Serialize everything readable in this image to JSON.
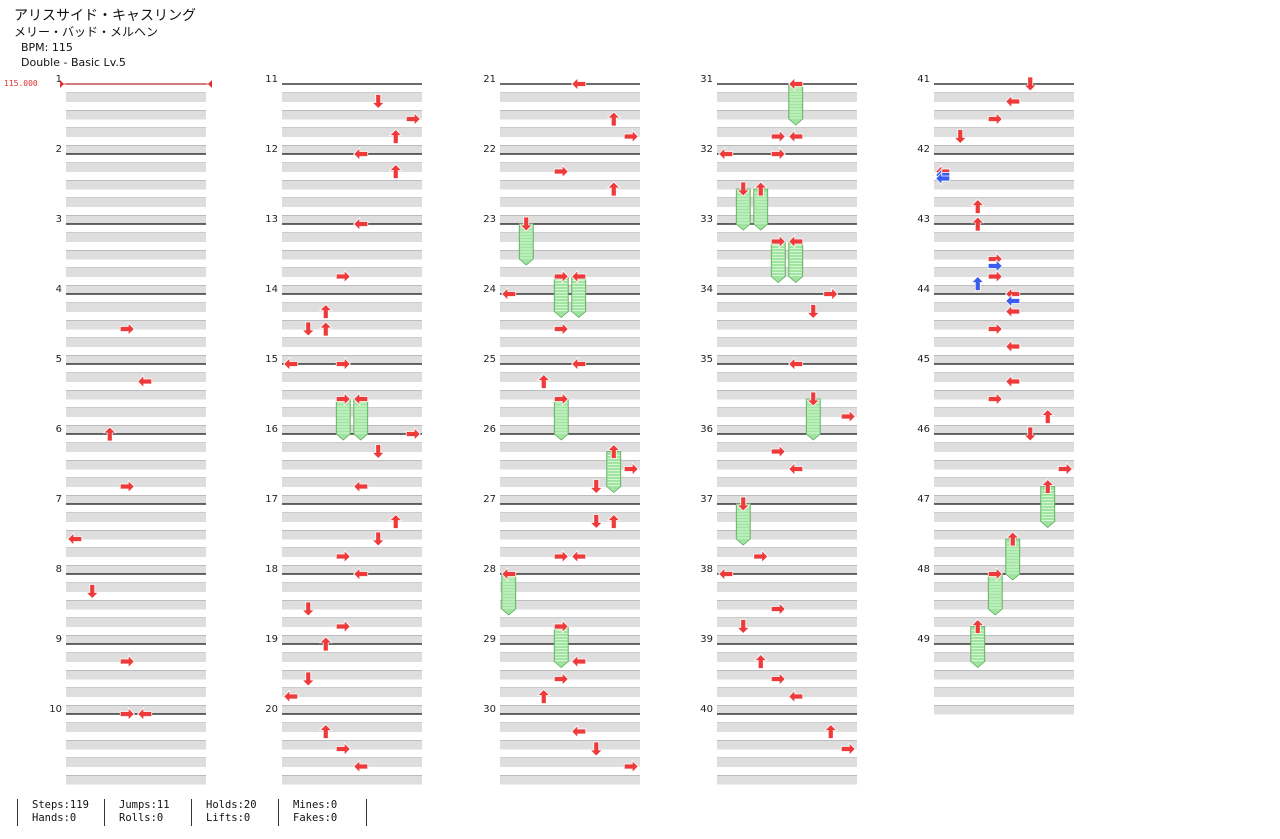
{
  "song": {
    "title": "アリスサイド・キャスリング",
    "artist": "メリー・バッド・メルヘン",
    "bpm_label": "BPM: 115",
    "mode_label": "Double - Basic  Lv.5"
  },
  "bpm_marker": {
    "value": "115.000"
  },
  "colors": {
    "blue_note": "#3a5cf0",
    "red_note": "#ee3a3a",
    "hold_body": "#9fe59f",
    "lane_shade": "#dedede"
  },
  "chart_data": {
    "type": "step-chart",
    "measure_count": 49,
    "measures_per_column": 10,
    "columns_per_measure": 8,
    "measure_labels": [
      "1",
      "2",
      "3",
      "4",
      "5",
      "6",
      "7",
      "8",
      "9",
      "10",
      "11",
      "12",
      "13",
      "14",
      "15",
      "16",
      "17",
      "18",
      "19",
      "20",
      "21",
      "22",
      "23",
      "24",
      "25",
      "26",
      "27",
      "28",
      "29",
      "30",
      "31",
      "32",
      "33",
      "34",
      "35",
      "36",
      "37",
      "38",
      "39",
      "40",
      "41",
      "42",
      "43",
      "44",
      "45",
      "46",
      "47",
      "48",
      "49"
    ],
    "notes": [
      {
        "m": 4,
        "b": 0.5,
        "c": 3,
        "d": "right"
      },
      {
        "m": 5,
        "b": 0.25,
        "c": 4,
        "d": "left"
      },
      {
        "m": 6,
        "b": 0,
        "c": 2,
        "d": "up"
      },
      {
        "m": 6,
        "b": 0.75,
        "c": 3,
        "d": "right"
      },
      {
        "m": 7,
        "b": 0.5,
        "c": 0,
        "d": "left"
      },
      {
        "m": 8,
        "b": 0.25,
        "c": 1,
        "d": "down"
      },
      {
        "m": 9,
        "b": 0.25,
        "c": 3,
        "d": "right"
      },
      {
        "m": 10,
        "b": 0,
        "c": 3,
        "d": "right"
      },
      {
        "m": 10,
        "b": 0,
        "c": 4,
        "d": "left"
      },
      {
        "m": 11,
        "b": 0.75,
        "c": 6,
        "d": "up"
      },
      {
        "m": 11,
        "b": 0.25,
        "c": 5,
        "d": "down"
      },
      {
        "m": 11,
        "b": 0.5,
        "c": 7,
        "d": "right"
      },
      {
        "m": 12,
        "b": 0,
        "c": 4,
        "d": "left"
      },
      {
        "m": 12,
        "b": 0.25,
        "c": 6,
        "d": "up"
      },
      {
        "m": 13,
        "b": 0.75,
        "c": 3,
        "d": "right"
      },
      {
        "m": 13,
        "b": 0,
        "c": 4,
        "d": "left"
      },
      {
        "m": 14,
        "b": 0.25,
        "c": 2,
        "d": "up"
      },
      {
        "m": 14,
        "b": 0.5,
        "c": 1,
        "d": "down"
      },
      {
        "m": 14,
        "b": 0.5,
        "c": 2,
        "d": "up"
      },
      {
        "m": 15,
        "b": 0,
        "c": 0,
        "d": "left"
      },
      {
        "m": 15,
        "b": 0,
        "c": 3,
        "d": "right"
      },
      {
        "m": 15,
        "b": 0.5,
        "c": 3,
        "d": "right",
        "hold": 0.5
      },
      {
        "m": 15,
        "b": 0.5,
        "c": 4,
        "d": "left",
        "hold": 0.5
      },
      {
        "m": 16,
        "b": 0.25,
        "c": 5,
        "d": "down"
      },
      {
        "m": 16,
        "b": 0.75,
        "c": 4,
        "d": "left"
      },
      {
        "m": 16,
        "b": 0,
        "c": 7,
        "d": "right"
      },
      {
        "m": 17,
        "b": 0.25,
        "c": 6,
        "d": "up"
      },
      {
        "m": 17,
        "b": 0.5,
        "c": 5,
        "d": "down"
      },
      {
        "m": 17,
        "b": 0.75,
        "c": 3,
        "d": "right"
      },
      {
        "m": 18,
        "b": 0,
        "c": 4,
        "d": "left"
      },
      {
        "m": 18,
        "b": 0.5,
        "c": 1,
        "d": "down"
      },
      {
        "m": 18,
        "b": 0.75,
        "c": 3,
        "d": "right"
      },
      {
        "m": 19,
        "b": 0,
        "c": 2,
        "d": "up"
      },
      {
        "m": 19,
        "b": 0.5,
        "c": 1,
        "d": "down"
      },
      {
        "m": 19,
        "b": 0.75,
        "c": 0,
        "d": "left"
      },
      {
        "m": 20,
        "b": 0.25,
        "c": 2,
        "d": "up"
      },
      {
        "m": 20,
        "b": 0.5,
        "c": 3,
        "d": "right"
      },
      {
        "m": 20,
        "b": 0.75,
        "c": 4,
        "d": "left"
      },
      {
        "m": 21,
        "b": 0.5,
        "c": 6,
        "d": "up"
      },
      {
        "m": 21,
        "b": 0.75,
        "c": 7,
        "d": "right"
      },
      {
        "m": 21,
        "b": 0,
        "c": 4,
        "d": "left"
      },
      {
        "m": 22,
        "b": 0.5,
        "c": 6,
        "d": "up"
      },
      {
        "m": 22,
        "b": 0.25,
        "c": 3,
        "d": "right"
      },
      {
        "m": 23,
        "b": 0.75,
        "c": 3,
        "d": "right",
        "hold": 0.5
      },
      {
        "m": 23,
        "b": 0.75,
        "c": 4,
        "d": "left",
        "hold": 0.5
      },
      {
        "m": 23,
        "b": 0,
        "c": 1,
        "d": "down",
        "hold": 0.5
      },
      {
        "m": 24,
        "b": 0.5,
        "c": 3,
        "d": "right"
      },
      {
        "m": 24,
        "b": 0,
        "c": 0,
        "d": "left"
      },
      {
        "m": 25,
        "b": 0.25,
        "c": 2,
        "d": "up"
      },
      {
        "m": 25,
        "b": 0.5,
        "c": 3,
        "d": "right",
        "hold": 0.5
      },
      {
        "m": 25,
        "b": 0,
        "c": 4,
        "d": "left"
      },
      {
        "m": 26,
        "b": 0.25,
        "c": 6,
        "d": "up",
        "hold": 0.5
      },
      {
        "m": 26,
        "b": 0.5,
        "c": 7,
        "d": "right"
      },
      {
        "m": 26,
        "b": 0.75,
        "c": 5,
        "d": "down"
      },
      {
        "m": 27,
        "b": 0.25,
        "c": 5,
        "d": "down"
      },
      {
        "m": 27,
        "b": 0.25,
        "c": 6,
        "d": "up"
      },
      {
        "m": 27,
        "b": 0.75,
        "c": 3,
        "d": "right"
      },
      {
        "m": 27,
        "b": 0.75,
        "c": 4,
        "d": "left"
      },
      {
        "m": 28,
        "b": 0,
        "c": 0,
        "d": "left",
        "hold": 0.5
      },
      {
        "m": 28,
        "b": 0.75,
        "c": 3,
        "d": "right",
        "hold": 0.5
      },
      {
        "m": 29,
        "b": 0.75,
        "c": 2,
        "d": "up"
      },
      {
        "m": 29,
        "b": 0.25,
        "c": 4,
        "d": "left"
      },
      {
        "m": 29,
        "b": 0.5,
        "c": 3,
        "d": "right"
      },
      {
        "m": 30,
        "b": 0.25,
        "c": 4,
        "d": "left"
      },
      {
        "m": 30,
        "b": 0.5,
        "c": 5,
        "d": "down"
      },
      {
        "m": 30,
        "b": 0.75,
        "c": 7,
        "d": "right"
      },
      {
        "m": 31,
        "b": 0,
        "c": 4,
        "d": "left",
        "hold": 0.5
      },
      {
        "m": 31,
        "b": 0.75,
        "c": 3,
        "d": "right"
      },
      {
        "m": 31,
        "b": 0.75,
        "c": 4,
        "d": "left"
      },
      {
        "m": 32,
        "b": 0,
        "c": 0,
        "d": "left"
      },
      {
        "m": 32,
        "b": 0,
        "c": 3,
        "d": "right"
      },
      {
        "m": 32,
        "b": 0.5,
        "c": 1,
        "d": "down",
        "hold": 0.5
      },
      {
        "m": 32,
        "b": 0.5,
        "c": 2,
        "d": "up",
        "hold": 0.5
      },
      {
        "m": 33,
        "b": 0.25,
        "c": 3,
        "d": "right",
        "hold": 0.5
      },
      {
        "m": 33,
        "b": 0.25,
        "c": 4,
        "d": "left",
        "hold": 0.5
      },
      {
        "m": 34,
        "b": 0,
        "c": 6,
        "d": "right"
      },
      {
        "m": 34,
        "b": 0.25,
        "c": 5,
        "d": "down"
      },
      {
        "m": 35,
        "b": 0.75,
        "c": 7,
        "d": "right"
      },
      {
        "m": 35,
        "b": 0,
        "c": 4,
        "d": "left"
      },
      {
        "m": 35,
        "b": 0.5,
        "c": 5,
        "d": "down",
        "hold": 0.5
      },
      {
        "m": 36,
        "b": 0.25,
        "c": 3,
        "d": "right"
      },
      {
        "m": 36,
        "b": 0.5,
        "c": 4,
        "d": "left"
      },
      {
        "m": 37,
        "b": 0,
        "c": 1,
        "d": "down",
        "hold": 0.5
      },
      {
        "m": 37,
        "b": 0.75,
        "c": 2,
        "d": "right"
      },
      {
        "m": 38,
        "b": 0,
        "c": 0,
        "d": "left"
      },
      {
        "m": 38,
        "b": 0.5,
        "c": 3,
        "d": "right"
      },
      {
        "m": 38,
        "b": 0.75,
        "c": 1,
        "d": "down"
      },
      {
        "m": 39,
        "b": 0.25,
        "c": 2,
        "d": "up"
      },
      {
        "m": 39,
        "b": 0.5,
        "c": 3,
        "d": "right"
      },
      {
        "m": 39,
        "b": 0.75,
        "c": 4,
        "d": "left"
      },
      {
        "m": 40,
        "b": 0.25,
        "c": 6,
        "d": "up"
      },
      {
        "m": 40,
        "b": 0.5,
        "c": 7,
        "d": "right"
      },
      {
        "m": 41,
        "b": 0,
        "c": 5,
        "d": "down"
      },
      {
        "m": 41,
        "b": 0.25,
        "c": 4,
        "d": "left"
      },
      {
        "m": 41,
        "b": 0.5,
        "c": 3,
        "d": "right"
      },
      {
        "m": 41,
        "b": 0.75,
        "c": 1,
        "d": "down"
      },
      {
        "m": 42,
        "b": 0.25,
        "c": 0,
        "d": "left"
      },
      {
        "m": 42,
        "b": 0.3,
        "c": 0,
        "d": "left"
      },
      {
        "m": 42,
        "b": 0.35,
        "c": 0,
        "d": "left"
      },
      {
        "m": 42,
        "b": 0.75,
        "c": 2,
        "d": "up"
      },
      {
        "m": 43,
        "b": 0,
        "c": 2,
        "d": "up"
      },
      {
        "m": 43,
        "b": 0.85,
        "c": 2,
        "d": "up"
      },
      {
        "m": 43,
        "b": 0.5,
        "c": 3,
        "d": "right"
      },
      {
        "m": 43,
        "b": 0.6,
        "c": 3,
        "d": "right"
      },
      {
        "m": 43,
        "b": 0.75,
        "c": 3,
        "d": "right"
      },
      {
        "m": 44,
        "b": 0,
        "c": 4,
        "d": "left"
      },
      {
        "m": 44,
        "b": 0.1,
        "c": 4,
        "d": "left"
      },
      {
        "m": 44,
        "b": 0.25,
        "c": 4,
        "d": "left"
      },
      {
        "m": 44,
        "b": 0.5,
        "c": 3,
        "d": "right"
      },
      {
        "m": 44,
        "b": 0.75,
        "c": 4,
        "d": "left"
      },
      {
        "m": 45,
        "b": 0.25,
        "c": 4,
        "d": "left"
      },
      {
        "m": 45,
        "b": 0.5,
        "c": 3,
        "d": "right"
      },
      {
        "m": 45,
        "b": 0.75,
        "c": 6,
        "d": "up"
      },
      {
        "m": 46,
        "b": 0,
        "c": 5,
        "d": "down"
      },
      {
        "m": 46,
        "b": 0.5,
        "c": 7,
        "d": "right"
      },
      {
        "m": 46,
        "b": 0.75,
        "c": 6,
        "d": "up",
        "hold": 0.5
      },
      {
        "m": 47,
        "b": 0.5,
        "c": 4,
        "d": "up",
        "hold": 0.5
      },
      {
        "m": 48,
        "b": 0,
        "c": 3,
        "d": "right",
        "hold": 0.5
      },
      {
        "m": 48,
        "b": 0.75,
        "c": 2,
        "d": "up",
        "hold": 0.5
      }
    ]
  },
  "stats": {
    "steps": "Steps:119",
    "jumps": "Jumps:11",
    "holds": "Holds:20",
    "mines": "Mines:0",
    "hands": "Hands:0",
    "rolls": "Rolls:0",
    "lifts": "Lifts:0",
    "fakes": "Fakes:0"
  }
}
